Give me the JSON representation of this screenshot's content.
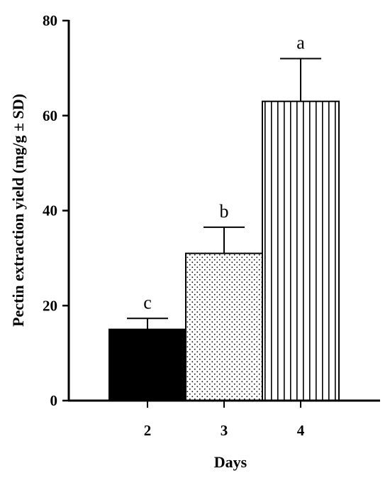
{
  "chart_data": {
    "type": "bar",
    "title": "",
    "xlabel": "Days",
    "ylabel": "Pectin extraction yield (mg/g ± SD)",
    "categories": [
      "2",
      "3",
      "4"
    ],
    "values": [
      15,
      31,
      63
    ],
    "error_upper": [
      17.3,
      36.5,
      72
    ],
    "significance_labels": [
      "c",
      "b",
      "a"
    ],
    "bar_fills": [
      "solid-black",
      "dotted",
      "vertical-stripes"
    ],
    "ylim": [
      0,
      80
    ],
    "yticks": [
      "0",
      "20",
      "40",
      "60",
      "80"
    ],
    "grid": false,
    "legend": "none",
    "colors": {
      "axis": "#000000",
      "bar_dark": "#000000",
      "bar_light": "#ffffff"
    }
  }
}
